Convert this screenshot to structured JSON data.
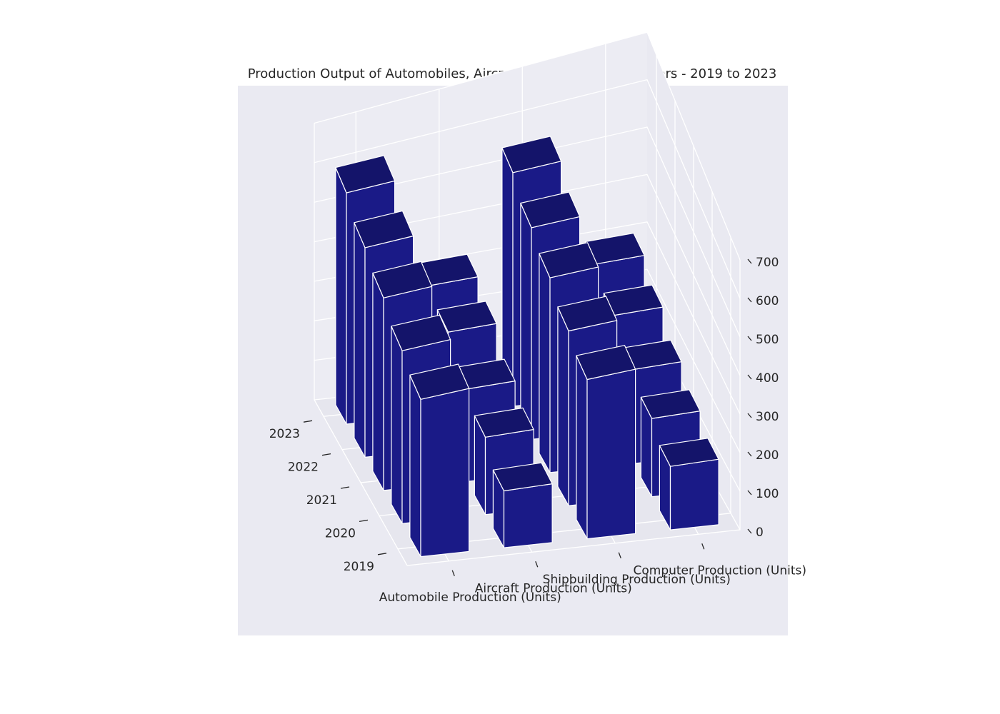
{
  "chart_data": {
    "type": "bar",
    "title": "Production Output of Automobiles, Aircrafts, Ships, and Computers - 2019 to 2023",
    "categories": [
      "2019",
      "2020",
      "2021",
      "2022",
      "2023"
    ],
    "series": [
      {
        "name": "Automobile Production (Units)",
        "values": [
          500,
          520,
          550,
          570,
          600
        ]
      },
      {
        "name": "Aircraft Production (Units)",
        "values": [
          170,
          220,
          250,
          300,
          320
        ]
      },
      {
        "name": "Shipbuilding Production (Units)",
        "values": [
          450,
          470,
          500,
          520,
          550
        ]
      },
      {
        "name": "Computer Production (Units)",
        "values": [
          170,
          200,
          230,
          270,
          300
        ]
      }
    ],
    "zlim": [
      0,
      700
    ],
    "zticks": [
      0,
      100,
      200,
      300,
      400,
      500,
      600,
      700
    ],
    "grid": true,
    "legend": "none",
    "colors": {
      "bar_front": "#1a1a87",
      "bar_side": "#1a1a87",
      "bar_top": "#14146a",
      "bar_edge": "#ffffff",
      "pane": "#eaeaf2",
      "grid": "#ffffff",
      "text": "#262626"
    }
  }
}
